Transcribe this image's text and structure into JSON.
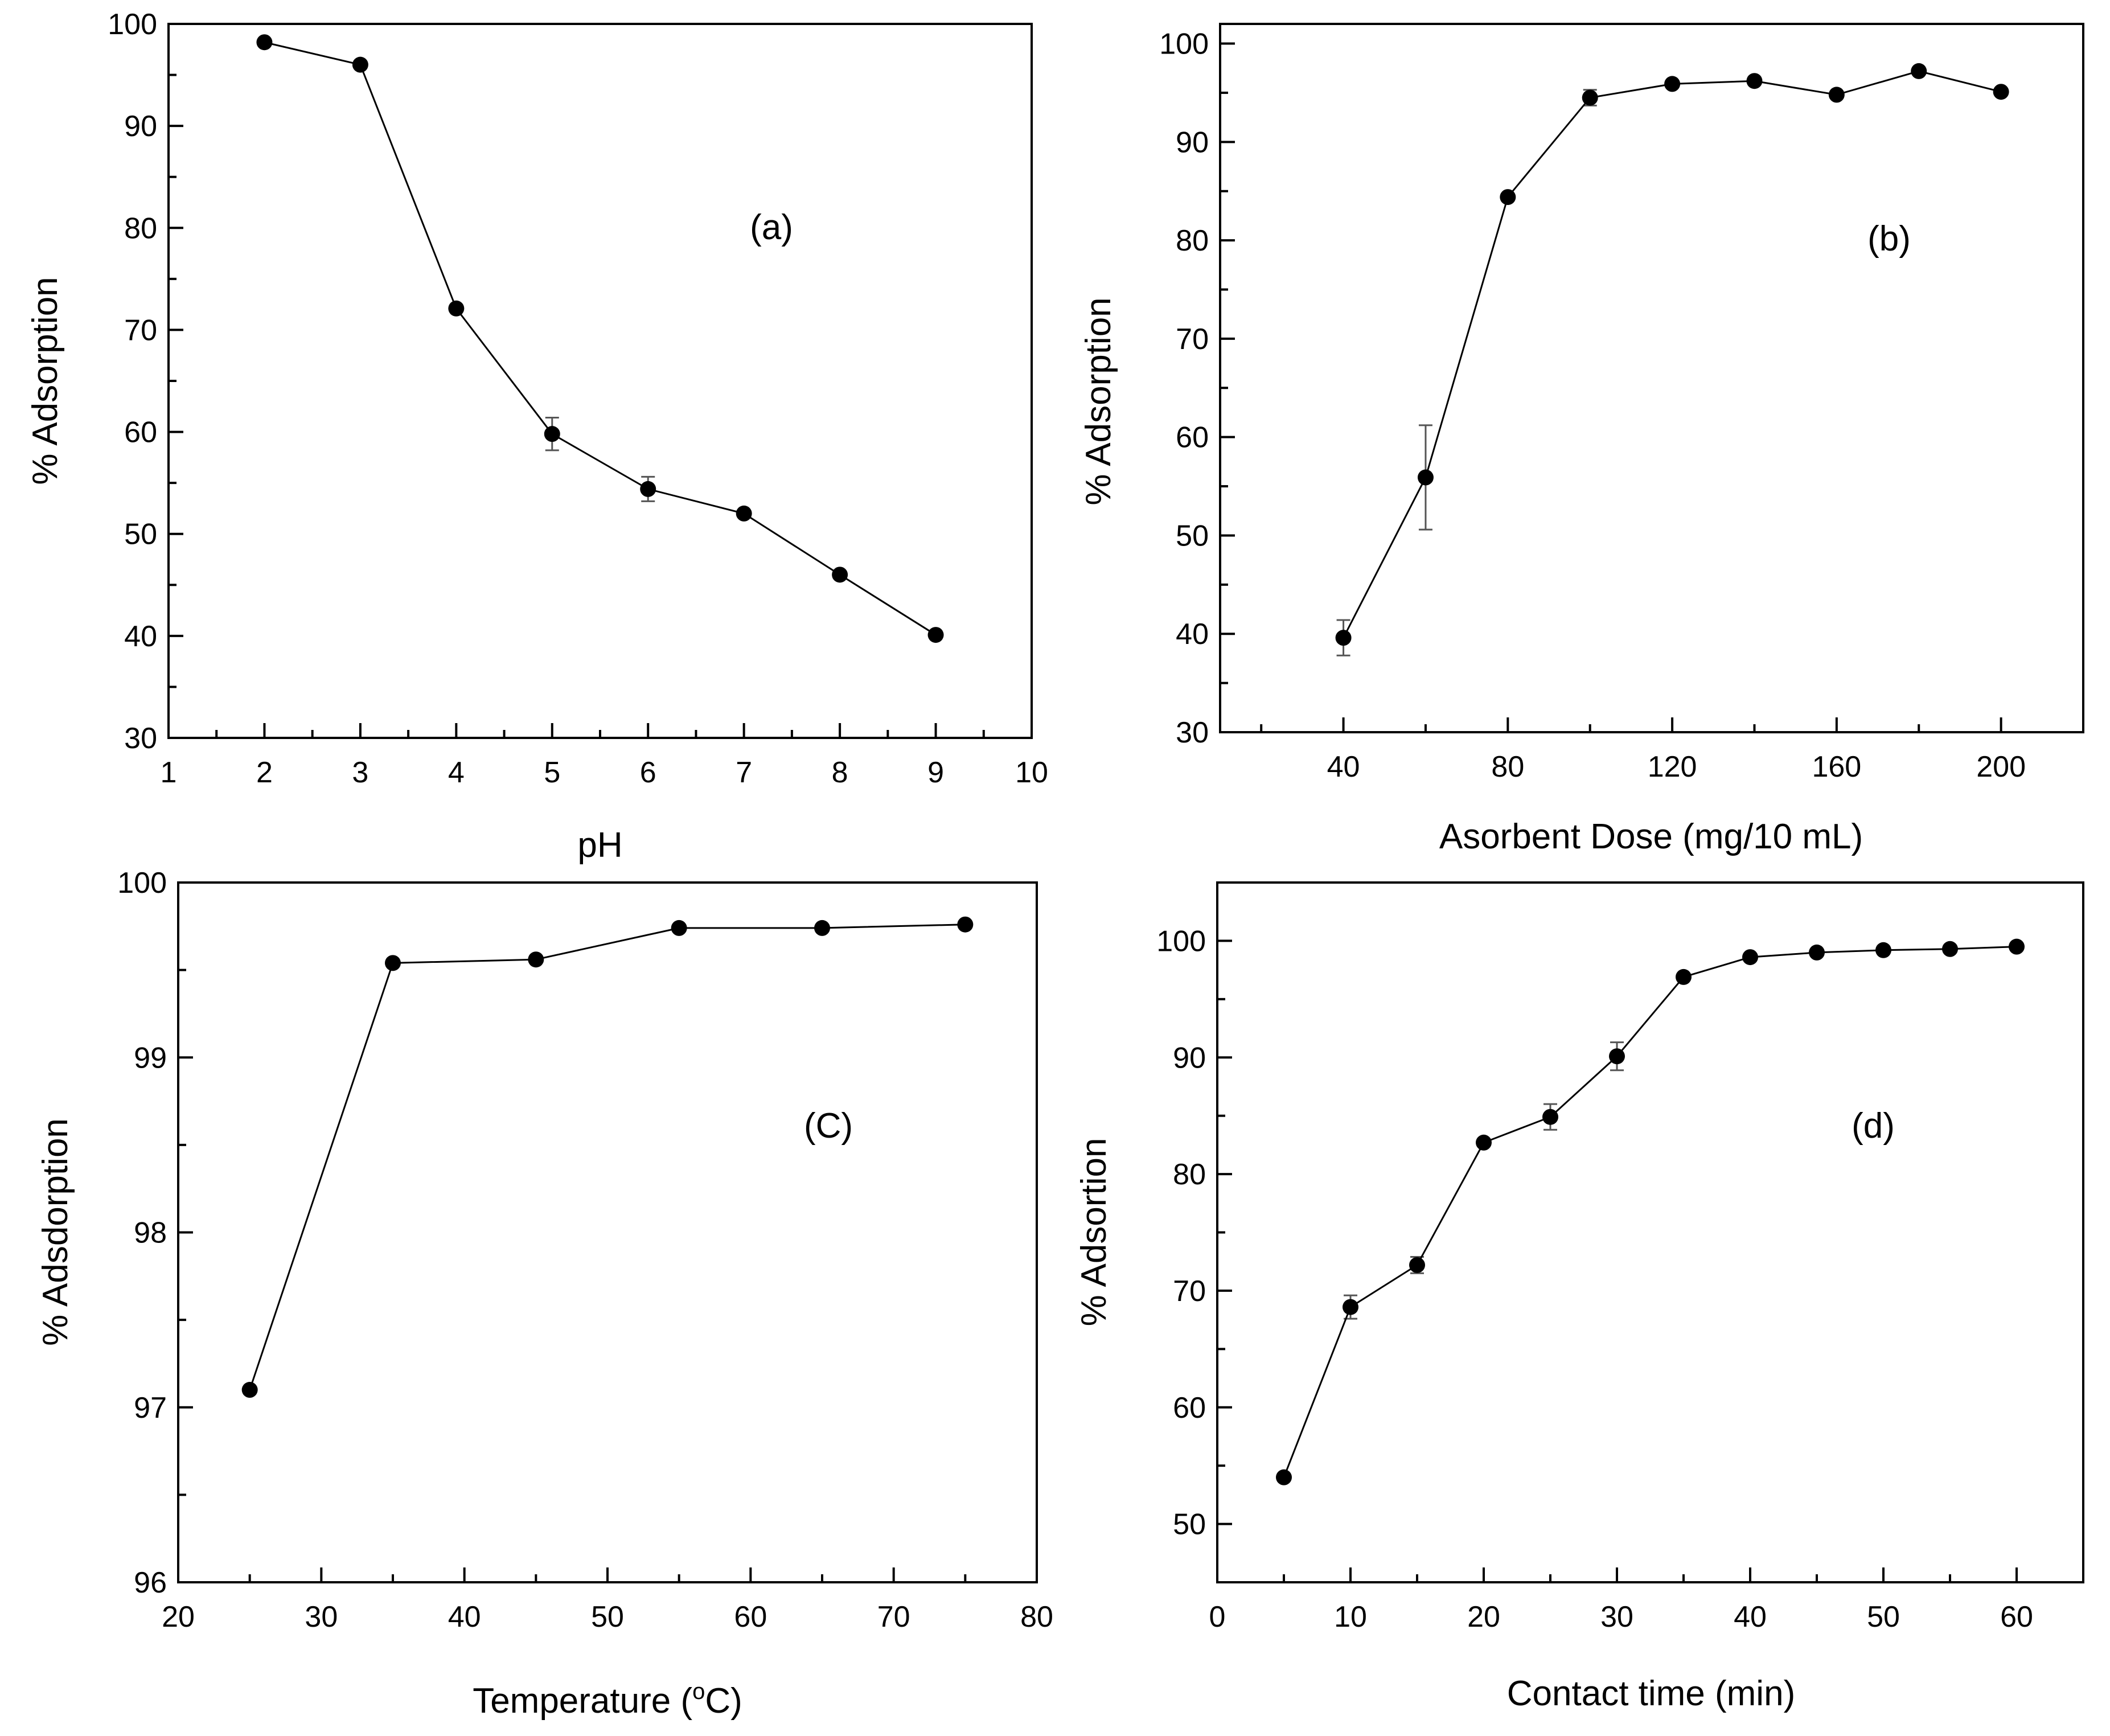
{
  "chart_data": [
    {
      "type": "line",
      "panel": "(a)",
      "xlabel": "pH",
      "ylabel": "% Adsorption",
      "xlim": [
        1,
        10
      ],
      "ylim": [
        30,
        100
      ],
      "xticks": [
        1,
        2,
        3,
        4,
        5,
        6,
        7,
        8,
        9,
        10
      ],
      "yticks": [
        30,
        40,
        50,
        60,
        70,
        80,
        90,
        100
      ],
      "x": [
        2,
        3,
        4,
        5,
        6,
        7,
        8,
        9
      ],
      "y": [
        98.2,
        96.0,
        72.1,
        59.8,
        54.4,
        52.0,
        46.0,
        40.1
      ],
      "err": [
        0,
        0,
        0,
        1.6,
        1.2,
        0,
        0,
        0
      ]
    },
    {
      "type": "line",
      "panel": "(b)",
      "xlabel": "Asorbent Dose (mg/10 mL)",
      "ylabel": "% Adsorption",
      "xlim": [
        10,
        220
      ],
      "ylim": [
        30,
        102
      ],
      "xticks": [
        40,
        80,
        120,
        160,
        200
      ],
      "yticks": [
        30,
        40,
        50,
        60,
        70,
        80,
        90,
        100
      ],
      "x": [
        40,
        60,
        80,
        100,
        120,
        140,
        160,
        180,
        200
      ],
      "y": [
        39.6,
        55.9,
        84.4,
        94.5,
        95.9,
        96.2,
        94.8,
        97.2,
        95.1
      ],
      "err": [
        1.8,
        5.3,
        0,
        0.8,
        0,
        0,
        0,
        0,
        0
      ]
    },
    {
      "type": "line",
      "panel": "(C)",
      "xlabel": "Temperature (",
      "xlabel_sup": "o",
      "xlabel_end": "C)",
      "ylabel": "% Adsdorption",
      "xlim": [
        20,
        80
      ],
      "ylim": [
        96,
        100
      ],
      "xticks": [
        20,
        30,
        40,
        50,
        60,
        70,
        80
      ],
      "yticks": [
        96,
        97,
        98,
        99,
        100
      ],
      "x": [
        25,
        35,
        45,
        55,
        65,
        75
      ],
      "y": [
        97.1,
        99.54,
        99.56,
        99.74,
        99.74,
        99.76
      ],
      "err": [
        0,
        0,
        0,
        0,
        0,
        0
      ]
    },
    {
      "type": "line",
      "panel": "(d)",
      "xlabel": "Contact time (min)",
      "ylabel": "% Adsortion",
      "xlim": [
        0,
        65
      ],
      "ylim": [
        45,
        105
      ],
      "xticks": [
        0,
        10,
        20,
        30,
        40,
        50,
        60
      ],
      "yticks": [
        50,
        60,
        70,
        80,
        90,
        100
      ],
      "x": [
        5,
        10,
        15,
        20,
        25,
        30,
        35,
        40,
        45,
        50,
        55,
        60
      ],
      "y": [
        54.0,
        68.6,
        72.2,
        82.7,
        84.9,
        90.1,
        96.9,
        98.6,
        99.0,
        99.2,
        99.3,
        99.5
      ],
      "err": [
        0,
        1.0,
        0.7,
        0,
        1.1,
        1.2,
        0,
        0,
        0,
        0,
        0,
        0
      ]
    }
  ]
}
